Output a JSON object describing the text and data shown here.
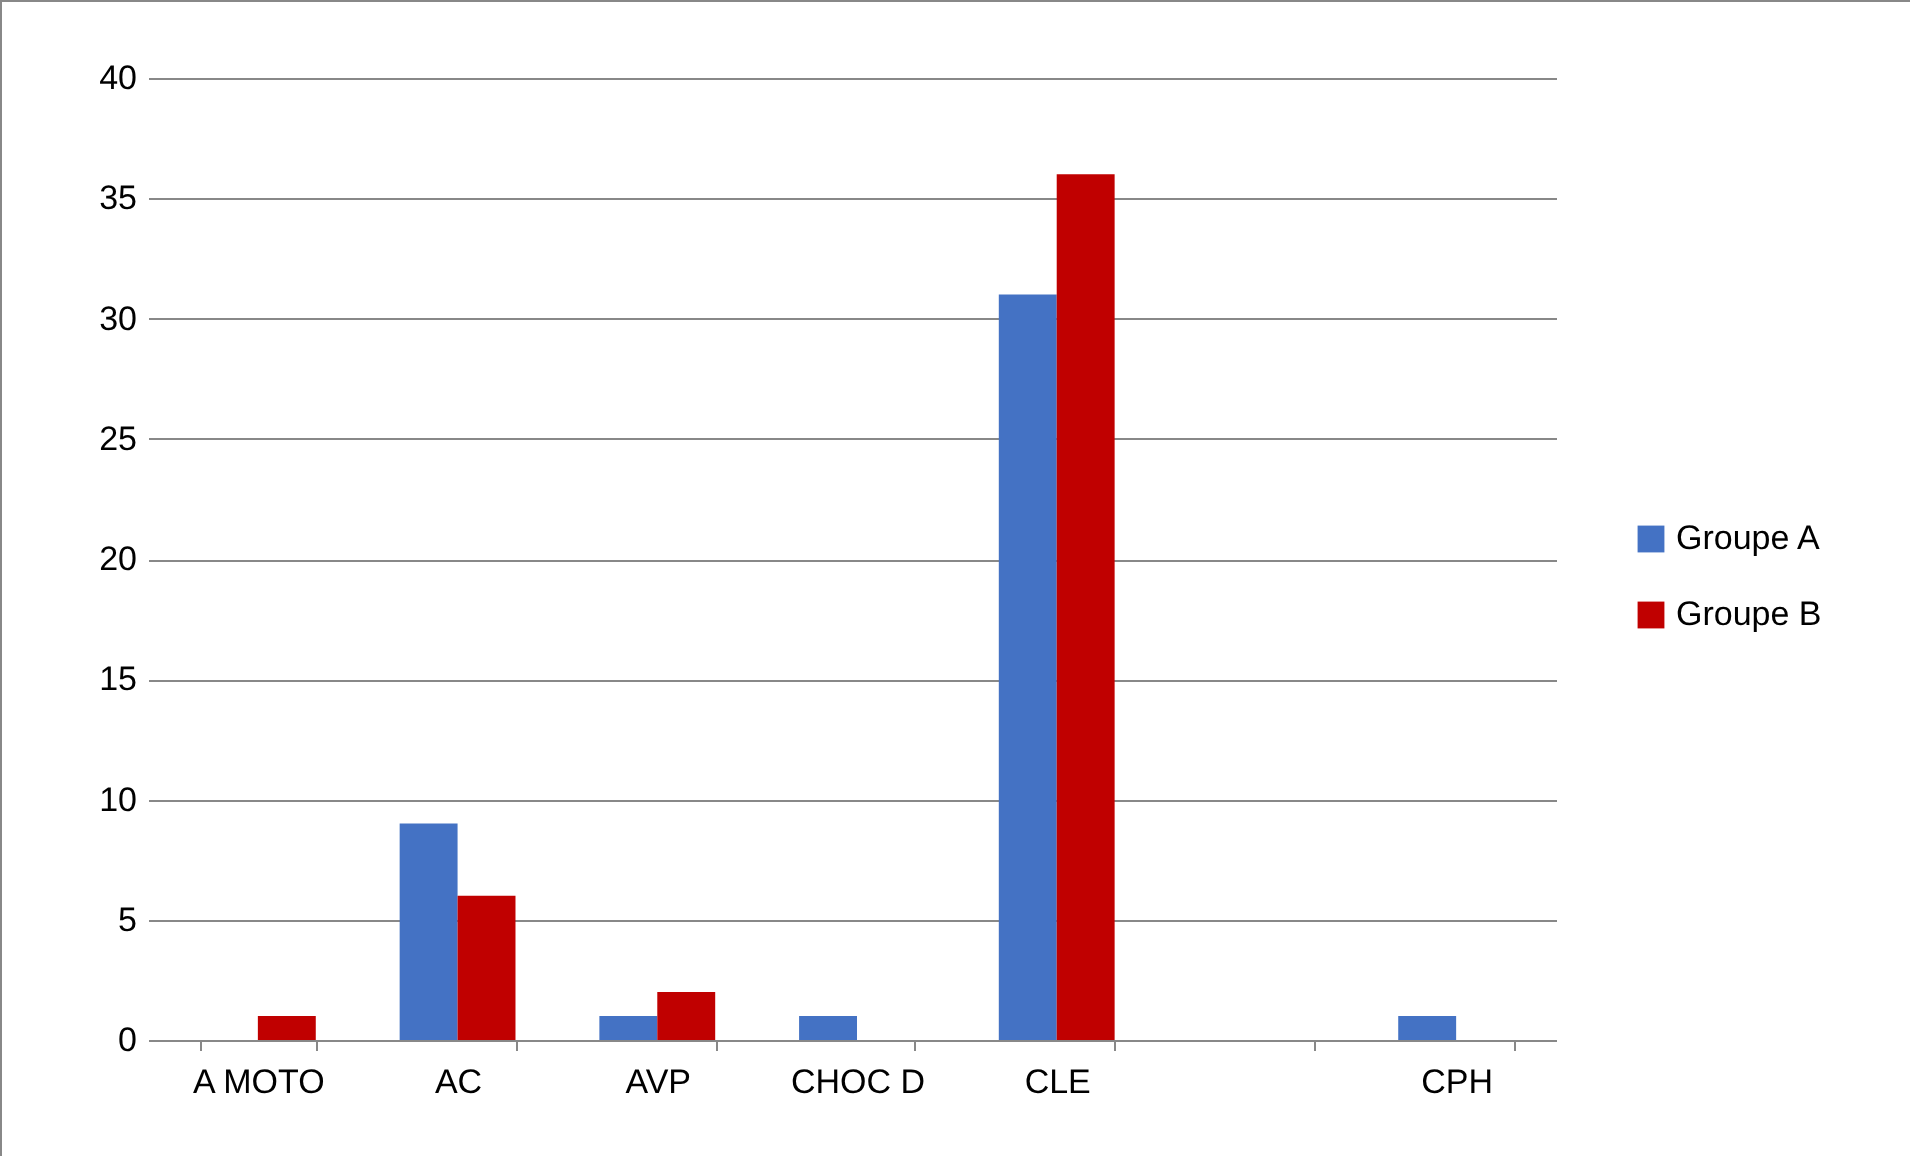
{
  "chart_data": {
    "type": "bar",
    "categories": [
      "A MOTO",
      "AC",
      "AVP",
      "CHOC D",
      "CLE",
      null,
      "CPH"
    ],
    "series": [
      {
        "name": "Groupe A",
        "color": "#4472c4",
        "values": [
          0,
          9,
          1,
          1,
          31,
          0,
          1
        ]
      },
      {
        "name": "Groupe B",
        "color": "#c00000",
        "values": [
          1,
          6,
          2,
          0,
          36,
          0,
          0
        ]
      }
    ],
    "ylim": [
      0,
      40
    ],
    "yticks": [
      0,
      5,
      10,
      15,
      20,
      25,
      30,
      35,
      40
    ],
    "grid": "y",
    "legend": "right"
  }
}
